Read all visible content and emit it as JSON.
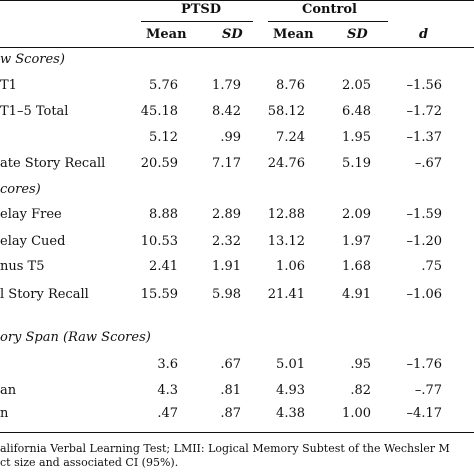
{
  "header": {
    "group_ptsd": "PTSD",
    "group_control": "Control",
    "col_mean_1": "Mean",
    "col_sd_1": "SD",
    "col_mean_2": "Mean",
    "col_sd_2": "SD",
    "col_d": "d"
  },
  "sections": {
    "raw_scores": "w Scores)",
    "scores": "cores)",
    "story_span": "ory Span (Raw Scores)"
  },
  "rows": [
    {
      "label": "T1",
      "ptsd_mean": "5.76",
      "ptsd_sd": "1.79",
      "ctrl_mean": "8.76",
      "ctrl_sd": "2.05",
      "d": "–1.56"
    },
    {
      "label": "T1–5 Total",
      "ptsd_mean": "45.18",
      "ptsd_sd": "8.42",
      "ctrl_mean": "58.12",
      "ctrl_sd": "6.48",
      "d": "–1.72"
    },
    {
      "label": "",
      "ptsd_mean": "5.12",
      "ptsd_sd": ".99",
      "ctrl_mean": "7.24",
      "ctrl_sd": "1.95",
      "d": "–1.37"
    },
    {
      "label": "ate Story Recall",
      "ptsd_mean": "20.59",
      "ptsd_sd": "7.17",
      "ctrl_mean": "24.76",
      "ctrl_sd": "5.19",
      "d": "–.67"
    },
    {
      "label": "elay Free",
      "ptsd_mean": "8.88",
      "ptsd_sd": "2.89",
      "ctrl_mean": "12.88",
      "ctrl_sd": "2.09",
      "d": "–1.59"
    },
    {
      "label": "elay Cued",
      "ptsd_mean": "10.53",
      "ptsd_sd": "2.32",
      "ctrl_mean": "13.12",
      "ctrl_sd": "1.97",
      "d": "–1.20"
    },
    {
      "label": "nus T5",
      "ptsd_mean": "2.41",
      "ptsd_sd": "1.91",
      "ctrl_mean": "1.06",
      "ctrl_sd": "1.68",
      "d": ".75"
    },
    {
      "label": "l Story Recall",
      "ptsd_mean": "15.59",
      "ptsd_sd": "5.98",
      "ctrl_mean": "21.41",
      "ctrl_sd": "4.91",
      "d": "–1.06"
    },
    {
      "label": "",
      "ptsd_mean": "3.6",
      "ptsd_sd": ".67",
      "ctrl_mean": "5.01",
      "ctrl_sd": ".95",
      "d": "–1.76"
    },
    {
      "label": "an",
      "ptsd_mean": "4.3",
      "ptsd_sd": ".81",
      "ctrl_mean": "4.93",
      "ctrl_sd": ".82",
      "d": "–.77"
    },
    {
      "label": "n",
      "ptsd_mean": ".47",
      "ptsd_sd": ".87",
      "ctrl_mean": "4.38",
      "ctrl_sd": "1.00",
      "d": "–4.17"
    }
  ],
  "notes": {
    "line1": "alifornia Verbal Learning Test; LMII: Logical Memory Subtest of the Wechsler M",
    "line2": "ct size and associated CI (95%)."
  }
}
